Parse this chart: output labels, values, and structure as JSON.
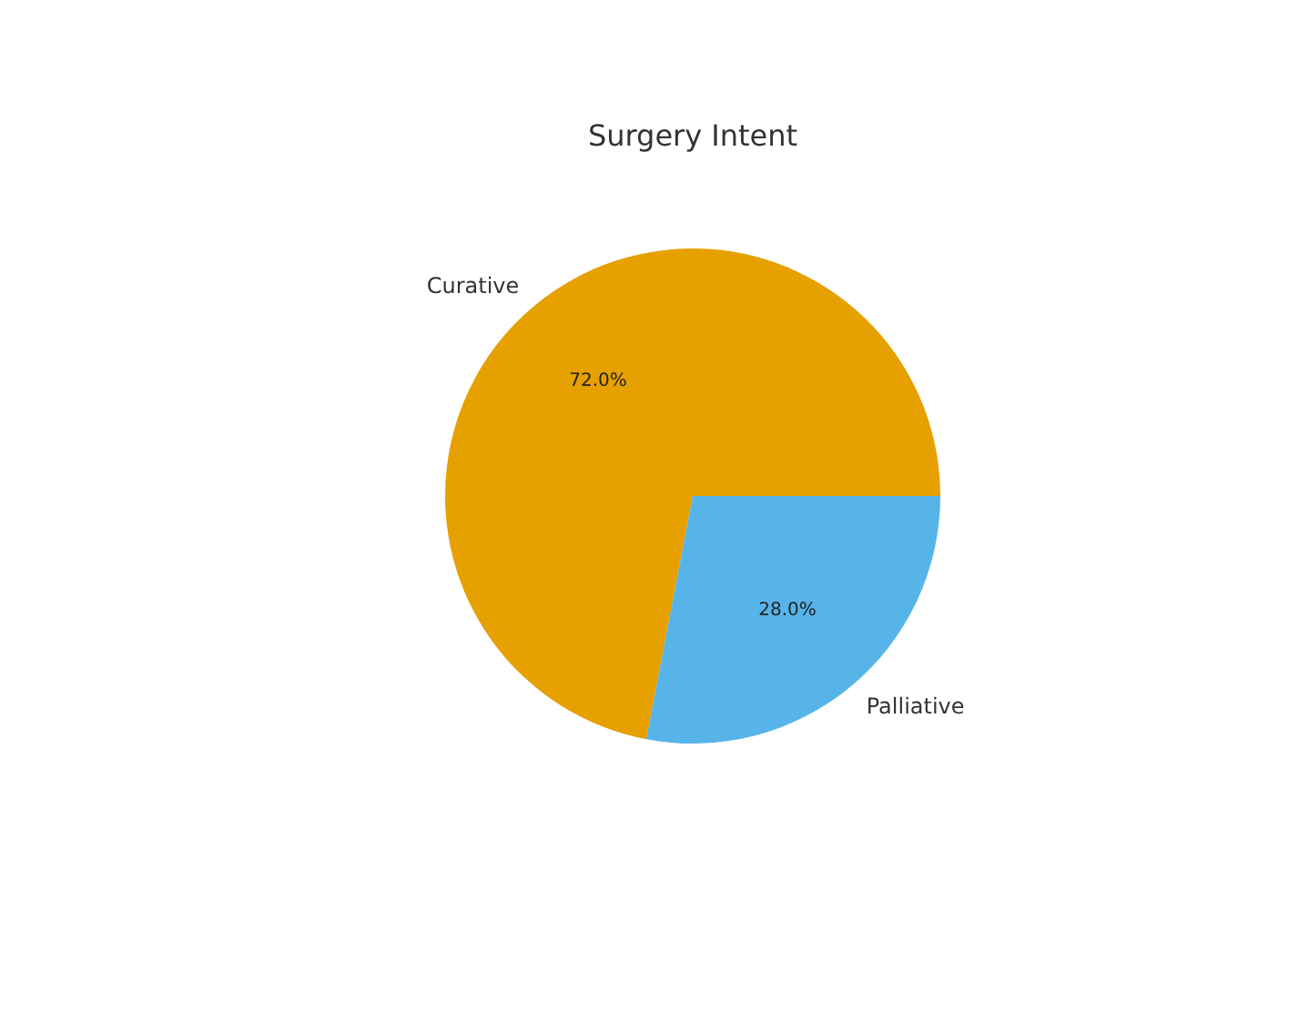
{
  "chart_data": {
    "type": "pie",
    "title": "Surgery Intent",
    "categories": [
      "Curative",
      "Palliative"
    ],
    "values": [
      72.0,
      28.0
    ],
    "colors": [
      "#e6a000",
      "#56b4e9"
    ],
    "value_labels": [
      "72.0%",
      "28.0%"
    ]
  }
}
